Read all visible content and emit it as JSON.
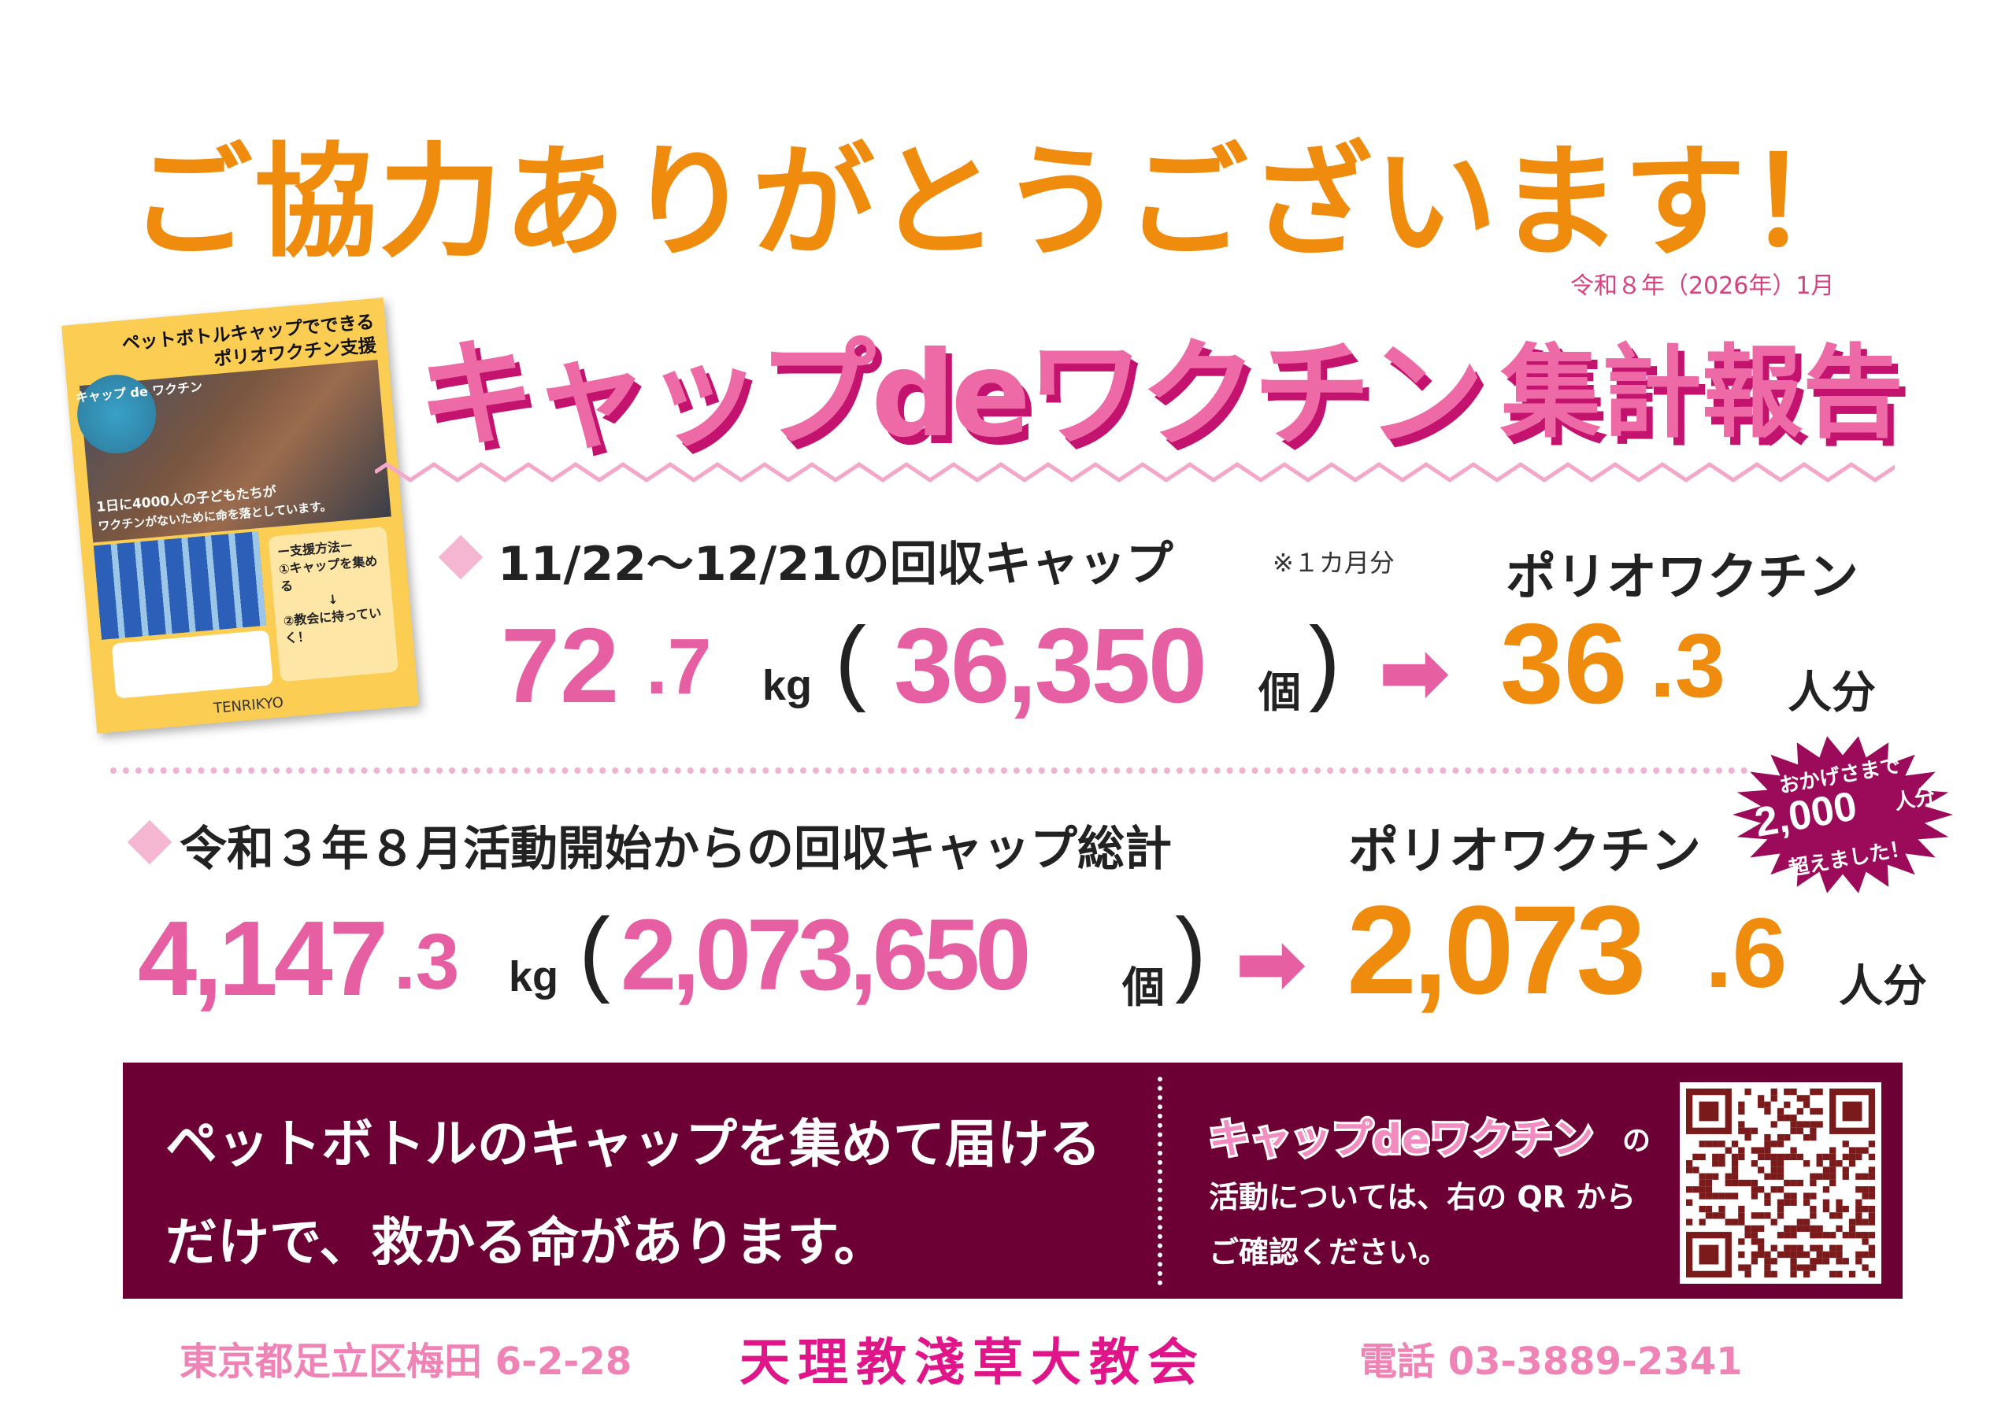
{
  "title": "ご協力ありがとうございます！",
  "date": "令和８年（2026年）1月",
  "heading": {
    "main": "キャップdeワクチン",
    "sub": "集計報告"
  },
  "poster": {
    "title_line1": "ペットボトルキャップでできる",
    "title_line2": "ポリオワクチン支援",
    "logo": "キャップ de ワクチン",
    "caption_line1": "1日に4000人の子どもたちが",
    "caption_line2": "ワクチンがないために命を落としています。",
    "steps_title": "ー支援方法ー",
    "step1": "①キャップを集める",
    "arrow": "↓",
    "step2": "②教会に持っていく！",
    "brand": "TENRIKYO"
  },
  "monthly": {
    "label": "11/22～12/21の回収キャップ",
    "note": "※１カ月分",
    "vaccine_label": "ポリオワクチン",
    "weight_int": "72",
    "weight_dec": ".7",
    "weight_unit": "kg",
    "paren_open": "(",
    "count": "36,350",
    "count_unit": "個",
    "paren_close": ")",
    "arrow": "➡",
    "doses_int": "36",
    "doses_dec": ".3",
    "doses_unit": "人分"
  },
  "total": {
    "label": "令和３年８月活動開始からの回収キャップ総計",
    "vaccine_label": "ポリオワクチン",
    "weight_int": "4,147",
    "weight_dec": ".3",
    "weight_unit": "kg",
    "paren_open": "(",
    "count": "2,073,650",
    "count_unit": "個",
    "paren_close": ")",
    "arrow": "➡",
    "doses_int": "2,073",
    "doses_dec": ".6",
    "doses_unit": "人分"
  },
  "badge": {
    "line1": "おかげさまで",
    "number": "2,000",
    "unit": "人分",
    "line3": "超えました！"
  },
  "banner": {
    "line1": "ペットボトルのキャップを集めて届ける",
    "line2": "だけで、救かる命があります。",
    "right_logo": "キャップdeワクチン",
    "right_line1_suffix": "の",
    "right_line2": "活動については、右の QR から",
    "right_line3": "ご確認ください。"
  },
  "footer": {
    "address": "東京都足立区梅田 6-2-28",
    "church": "天理教淺草大教会",
    "phone": "電話 03-3889-2341"
  },
  "colors": {
    "orange": "#ef8c0e",
    "pink": "#e65fa2",
    "banner": "#6c0034",
    "magenta": "#e0158a"
  }
}
